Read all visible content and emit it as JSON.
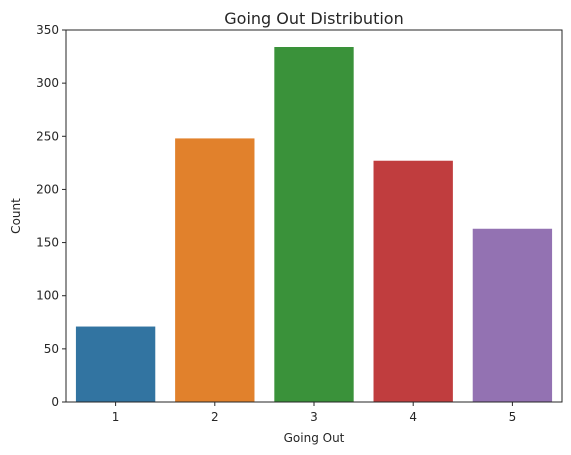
{
  "chart_data": {
    "type": "bar",
    "title": "Going Out Distribution",
    "xlabel": "Going Out",
    "ylabel": "Count",
    "categories": [
      "1",
      "2",
      "3",
      "4",
      "5"
    ],
    "values": [
      71,
      248,
      334,
      227,
      163
    ],
    "colors": [
      "#3274a1",
      "#e1812c",
      "#3a923a",
      "#c03d3e",
      "#9372b2"
    ],
    "ylim": [
      0,
      350
    ],
    "yticks": [
      0,
      50,
      100,
      150,
      200,
      250,
      300,
      350
    ],
    "grid": false,
    "legend": "none"
  }
}
